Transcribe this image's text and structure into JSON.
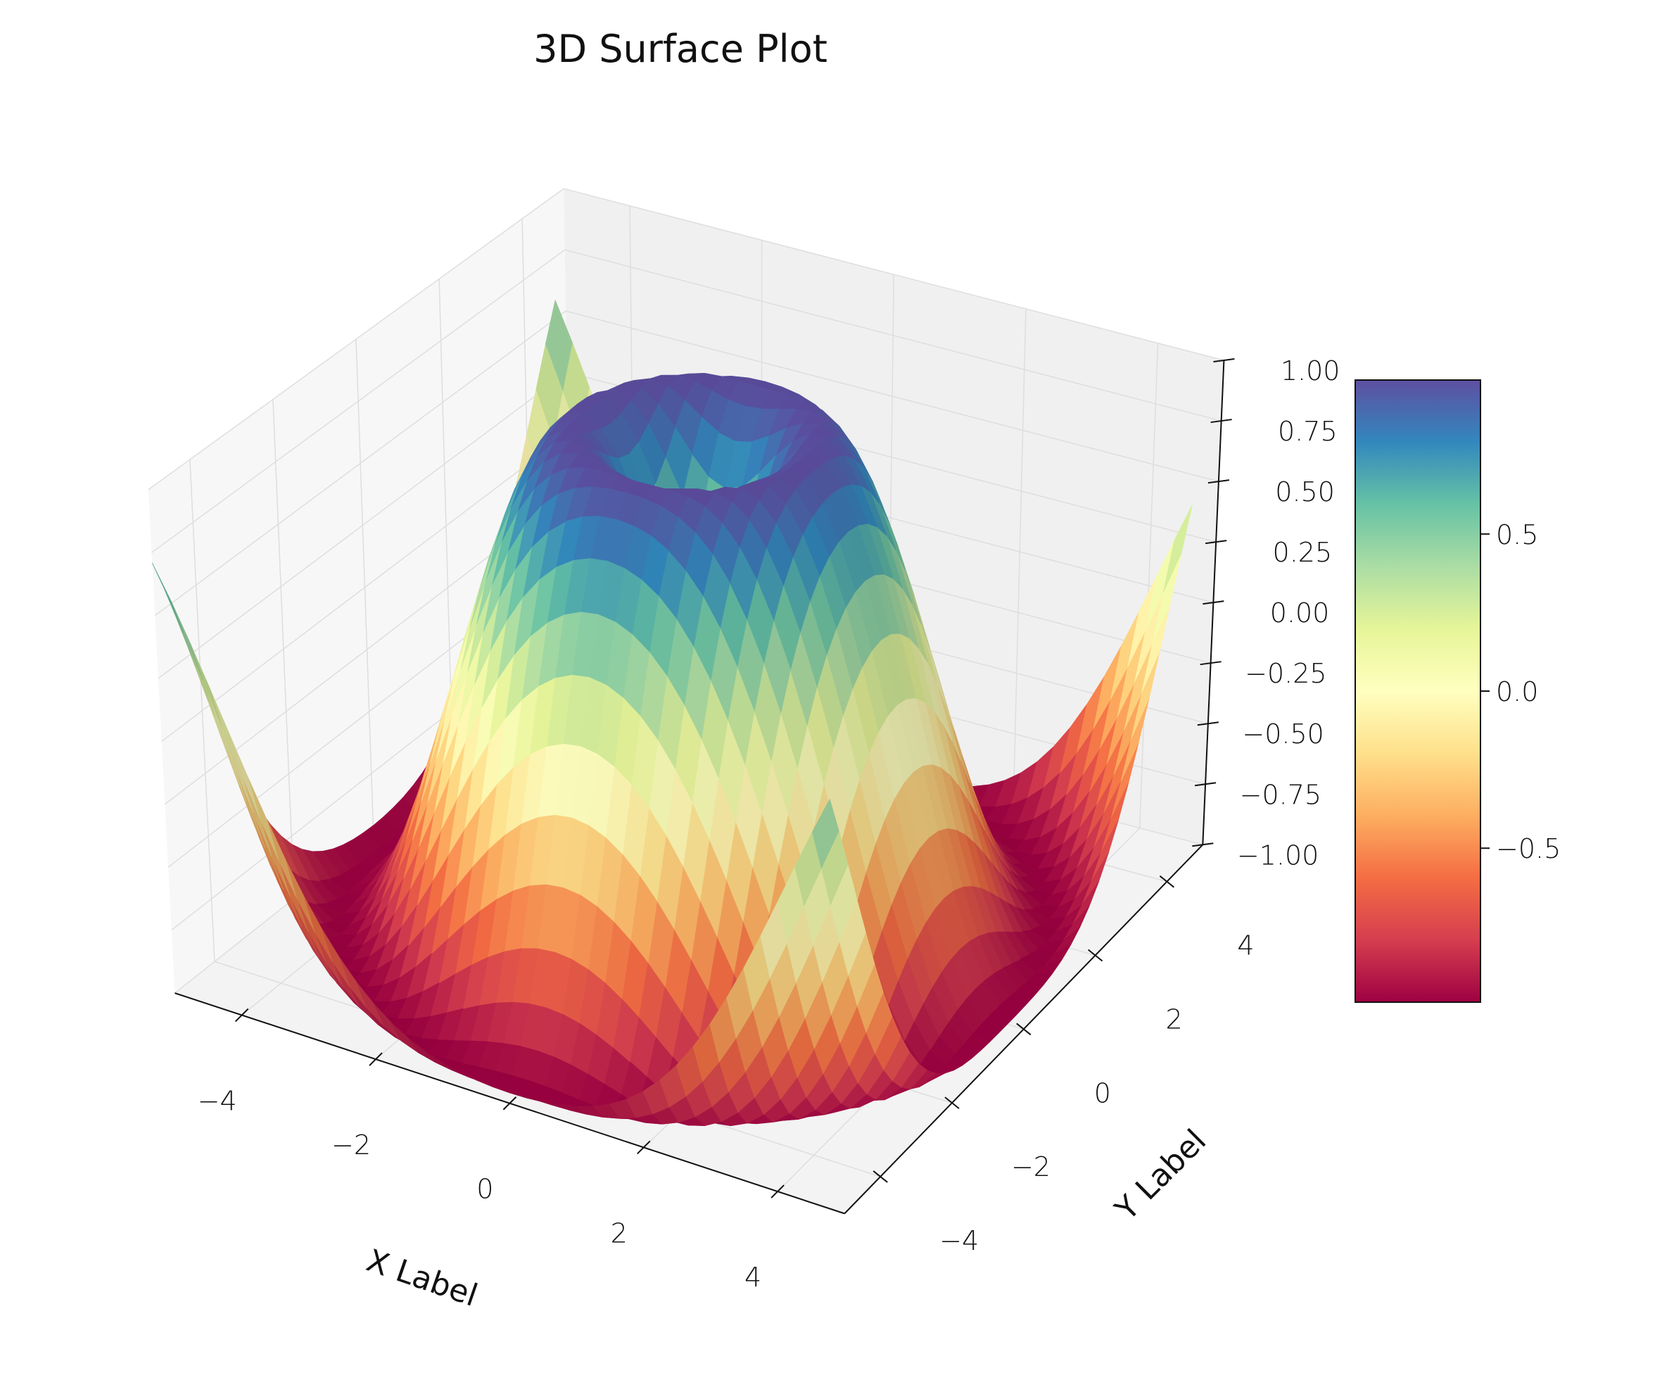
{
  "chart_data": {
    "type": "surface",
    "title": "3D Surface Plot",
    "xlabel": "X Label",
    "ylabel": "Y Label",
    "zlabel": "",
    "x_range": [
      -5,
      5
    ],
    "y_range": [
      -5,
      5
    ],
    "grid_step": 0.25,
    "z_function": "sin(sqrt(x^2 + y^2))",
    "zlim": [
      -1,
      1
    ],
    "xticks": [
      "−4",
      "−2",
      "0",
      "2",
      "4"
    ],
    "xtick_values": [
      -4,
      -2,
      0,
      2,
      4
    ],
    "yticks": [
      "−4",
      "−2",
      "0",
      "2",
      "4"
    ],
    "ytick_values": [
      -4,
      -2,
      0,
      2,
      4
    ],
    "zticks": [
      "−1.00",
      "−0.75",
      "−0.50",
      "−0.25",
      "0.00",
      "0.25",
      "0.50",
      "0.75",
      "1.00"
    ],
    "ztick_values": [
      -1,
      -0.75,
      -0.5,
      -0.25,
      0,
      0.25,
      0.5,
      0.75,
      1
    ],
    "view": {
      "elev": 30,
      "azim": -60
    },
    "grid": true,
    "colormap": "Spectral",
    "colormap_stops": [
      "#9e0142",
      "#d53e4f",
      "#f46d43",
      "#fdae61",
      "#fee08b",
      "#ffffbf",
      "#e6f598",
      "#abdda4",
      "#66c2a5",
      "#3288bd",
      "#5e4fa2"
    ],
    "colorbar": {
      "range": [
        -0.99,
        0.99
      ],
      "ticks": [
        "−0.5",
        "0.0",
        "0.5"
      ],
      "tick_values": [
        -0.5,
        0,
        0.5
      ],
      "placement": "right"
    }
  }
}
